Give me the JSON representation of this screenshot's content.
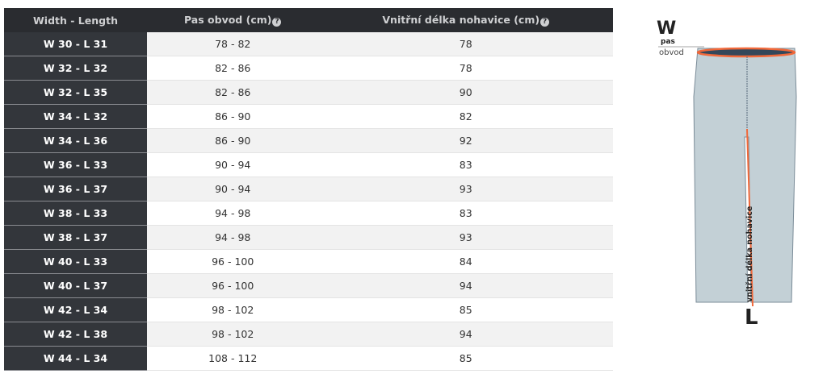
{
  "table": {
    "headers": [
      "Width - Length",
      "Pas obvod (cm)",
      "Vnitřní délka nohavice (cm)"
    ],
    "help_icon": "question-circle-icon",
    "rows": [
      [
        "W 30 - L 31",
        "78 - 82",
        "78"
      ],
      [
        "W 32 - L 32",
        "82 - 86",
        "78"
      ],
      [
        "W 32 - L 35",
        "82 - 86",
        "90"
      ],
      [
        "W 34 - L 32",
        "86 - 90",
        "82"
      ],
      [
        "W 34 - L 36",
        "86 - 90",
        "92"
      ],
      [
        "W 36 - L 33",
        "90 - 94",
        "83"
      ],
      [
        "W 36 - L 37",
        "90 - 94",
        "93"
      ],
      [
        "W 38 - L 33",
        "94 - 98",
        "83"
      ],
      [
        "W 38 - L 37",
        "94 - 98",
        "93"
      ],
      [
        "W 40 - L 33",
        "96 - 100",
        "84"
      ],
      [
        "W 40 - L 37",
        "96 - 100",
        "94"
      ],
      [
        "W 42 - L 34",
        "98 - 102",
        "85"
      ],
      [
        "W 42 - L 38",
        "98 - 102",
        "94"
      ],
      [
        "W 44 - L 34",
        "108 - 112",
        "85"
      ]
    ]
  },
  "figure": {
    "w": "W",
    "pas": "pas",
    "obvod": "obvod",
    "inseam": "vnitřní délka nohavice",
    "l": "L",
    "accent": "#f0683a",
    "pants_color": "#c3d0d6"
  }
}
